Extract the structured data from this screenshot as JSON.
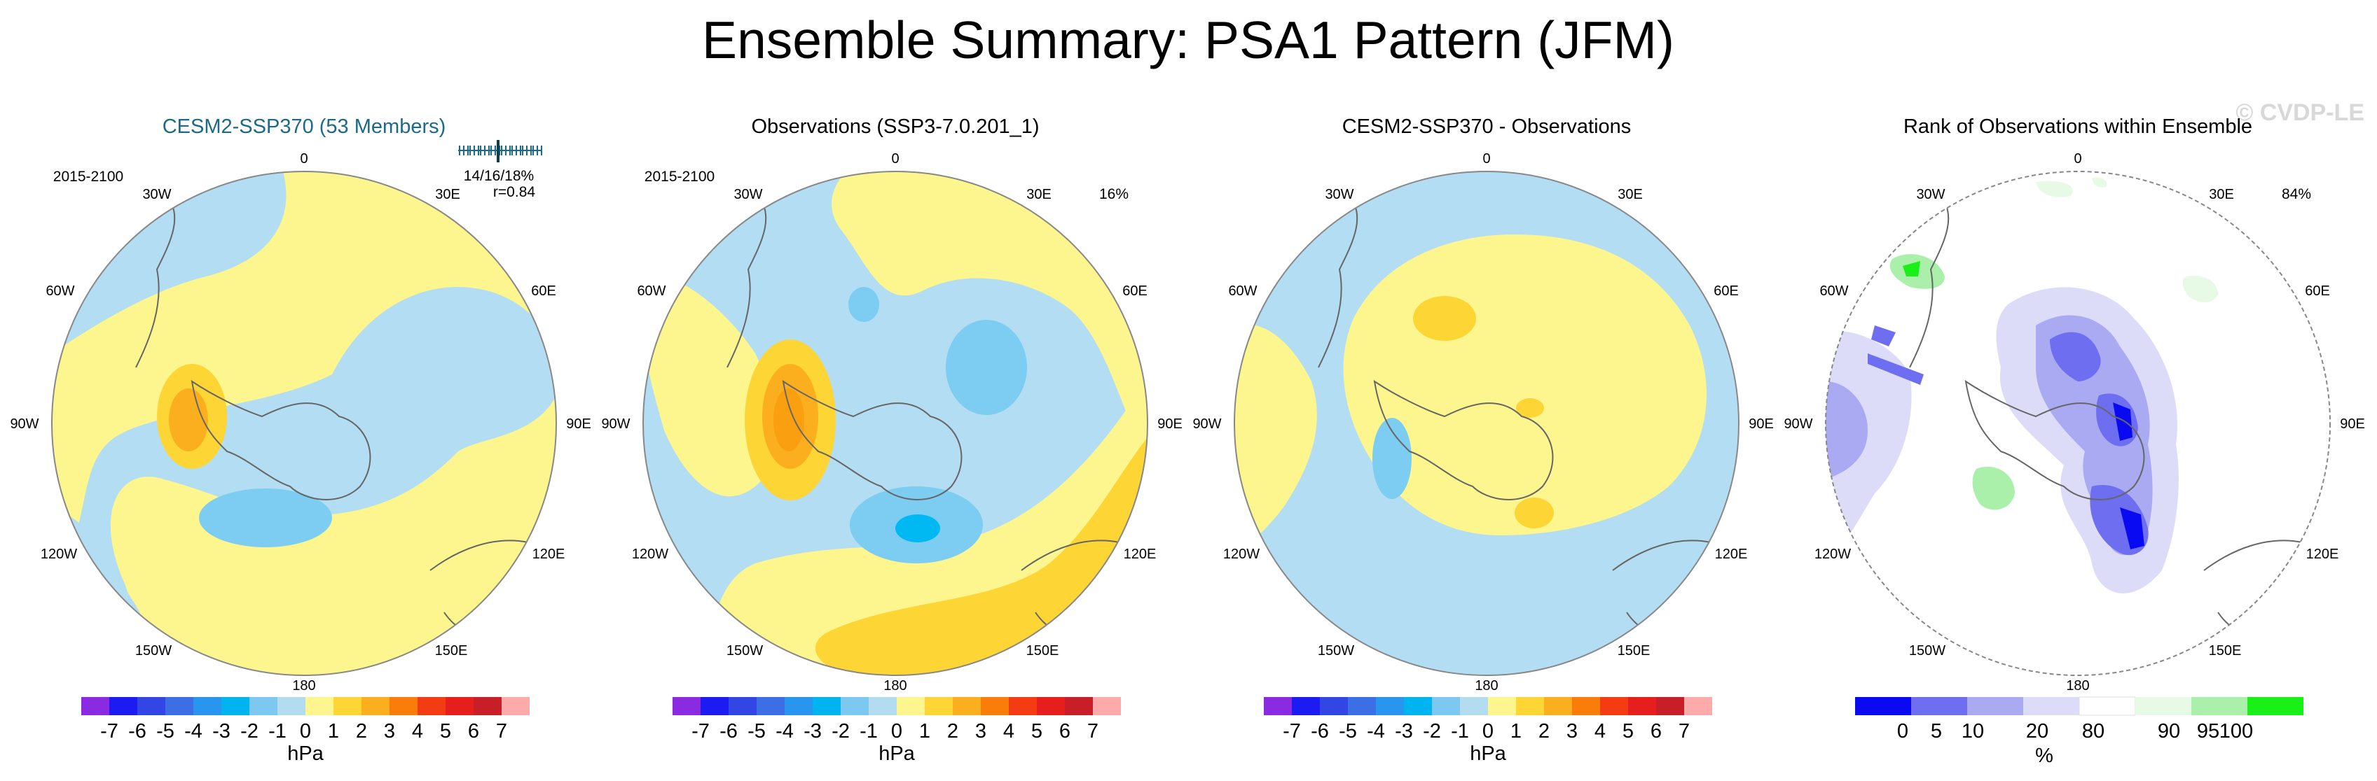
{
  "title": "Ensemble Summary: PSA1 Pattern (JFM)",
  "watermark": "© CVDP-LE",
  "colors": {
    "ocean_pos1": "#fdf68e",
    "ocean_pos2": "#fdd535",
    "ocean_pos3": "#fcaf1e",
    "neg1": "#b3ddf2",
    "neg2": "#7ccdf1",
    "neg3": "#00b8f2",
    "title_teal": "#1b6a8a"
  },
  "diverging_scale": {
    "ticks": [
      "-7",
      "-6",
      "-5",
      "-4",
      "-3",
      "-2",
      "-1",
      "0",
      "1",
      "2",
      "3",
      "4",
      "5",
      "6",
      "7"
    ],
    "colors": [
      "#8a2be2",
      "#1c1cf2",
      "#3246e6",
      "#3c6ee6",
      "#2896ee",
      "#00b4f0",
      "#7cc8f0",
      "#b4dcf0",
      "#fdf68e",
      "#fdd535",
      "#fcaf1e",
      "#fa7d0a",
      "#f43c14",
      "#e61e1e",
      "#c81e28",
      "#fcaaaa"
    ],
    "unit": "hPa"
  },
  "rank_scale": {
    "ticks": [
      "0",
      "5",
      "10",
      "20",
      "80",
      "90",
      "95",
      "100"
    ],
    "colors": [
      "#0a0af2",
      "#6e6ef0",
      "#aaaaf2",
      "#dcdcf8",
      "#ffffff",
      "#e6fae6",
      "#aaf0aa",
      "#18f018"
    ],
    "unit": "%"
  },
  "panels": [
    {
      "title": "CESM2-SSP370 (53 Members)",
      "period": "2015-2100",
      "stats_line1": "14/16/18%",
      "stats_line2": "r=0.84",
      "pct": ""
    },
    {
      "title": "Observations (SSP3-7.0.201_1)",
      "period": "2015-2100",
      "stats_line1": "",
      "stats_line2": "",
      "pct": "16%"
    },
    {
      "title": "CESM2-SSP370 - Observations",
      "period": "",
      "stats_line1": "",
      "stats_line2": "",
      "pct": ""
    },
    {
      "title": "Rank of Observations within Ensemble",
      "period": "",
      "stats_line1": "",
      "stats_line2": "",
      "pct": "84%"
    }
  ],
  "lon_labels": {
    "top": "0",
    "bottom": "180",
    "tl": "30W",
    "tr": "30E",
    "ml_up": "60W",
    "mr_up": "60E",
    "left": "90W",
    "right": "90E",
    "ml_low": "120W",
    "mr_low": "120E",
    "bl": "150W",
    "br": "150E"
  },
  "chart_data": [
    {
      "type": "heatmap",
      "title": "CESM2-SSP370 (53 Members)",
      "projection": "south polar stereographic",
      "field": "PSA1 pattern regression (ensemble mean)",
      "period": "2015-2100",
      "unit": "hPa",
      "contour_levels": [
        -7,
        -6,
        -5,
        -4,
        -3,
        -2,
        -1,
        0,
        1,
        2,
        3,
        4,
        5,
        6,
        7
      ],
      "features": [
        {
          "sign": "+",
          "max_level": 2,
          "location": "southeast Pacific (~90W, 60S)"
        },
        {
          "sign": "-",
          "min_level": -2,
          "location": "Ross/Amundsen Sea (~135W, 65S)"
        },
        {
          "sign": "-",
          "min_level": -1,
          "location": "South Atlantic / Indian sector"
        }
      ],
      "pct_variance": [
        14,
        16,
        18
      ],
      "pattern_correlation": 0.84
    },
    {
      "type": "heatmap",
      "title": "Observations (SSP3-7.0.201_1)",
      "period": "2015-2100",
      "unit": "hPa",
      "features": [
        {
          "sign": "+",
          "max_level": 3,
          "location": "southeast Pacific (~90W, 55S)"
        },
        {
          "sign": "-",
          "min_level": -3,
          "location": "Ross Sea (~150W, 65S)"
        },
        {
          "sign": "-",
          "min_level": -2,
          "location": "Indian sector (~40E, 60S)"
        },
        {
          "sign": "+",
          "max_level": 2,
          "location": "southwest Pacific / Australia"
        }
      ],
      "pct_variance": 16
    },
    {
      "type": "heatmap",
      "title": "CESM2-SSP370 - Observations",
      "unit": "hPa",
      "features": [
        {
          "sign": "+",
          "max_level": 2,
          "location": "Weddell Sea (~10E, 65S)"
        },
        {
          "sign": "-",
          "min_level": -2,
          "location": "southeast Pacific (~100W, 60S)"
        },
        {
          "sign": "+",
          "max_level": 2,
          "location": "East Antarctica / Ross (~150E, 75S)"
        }
      ]
    },
    {
      "type": "heatmap",
      "title": "Rank of Observations within Ensemble",
      "unit": "%",
      "levels": [
        0,
        5,
        10,
        20,
        80,
        90,
        95,
        100
      ],
      "pct_value": 84
    }
  ]
}
